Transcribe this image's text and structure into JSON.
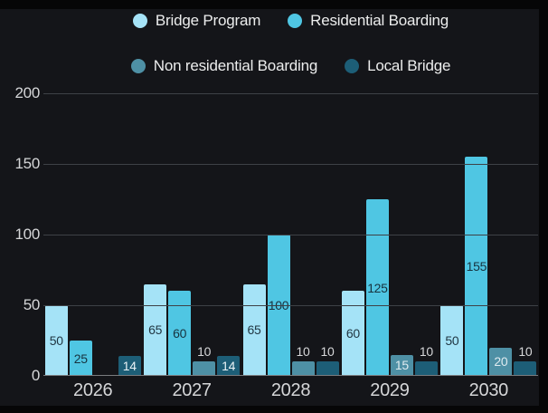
{
  "chart_data": {
    "type": "bar",
    "title": "",
    "categories": [
      "2026",
      "2027",
      "2028",
      "2029",
      "2030"
    ],
    "series": [
      {
        "name": "Bridge Program",
        "color": "#a5e3f7",
        "label_color": "#213743",
        "values": [
          50,
          65,
          65,
          60,
          50
        ]
      },
      {
        "name": "Residential Boarding",
        "color": "#4fc6e3",
        "label_color": "#17333f",
        "values": [
          25,
          60,
          100,
          125,
          155
        ]
      },
      {
        "name": "Non residential Boarding",
        "color": "#4e90a5",
        "label_color": "#dfebf0",
        "values": [
          null,
          10,
          10,
          15,
          20
        ]
      },
      {
        "name": "Local Bridge",
        "color": "#1d5e77",
        "label_color": "#eaf3f6",
        "values": [
          14,
          14,
          10,
          10,
          10
        ]
      }
    ],
    "xlabel": "",
    "ylabel": "",
    "ylim": [
      0,
      200
    ],
    "yticks": [
      0,
      50,
      100,
      150,
      200
    ],
    "grid": true,
    "legend_position": "top",
    "legend_rows": [
      [
        0,
        1
      ],
      [
        2,
        3
      ]
    ]
  },
  "colors": {
    "panel_background": "#141519",
    "outer_background": "#060607",
    "gridline": "#3e4146",
    "axis_line": "#7a7c7f",
    "tick_text": "#d5d6d8",
    "legend_text": "#eceded"
  }
}
